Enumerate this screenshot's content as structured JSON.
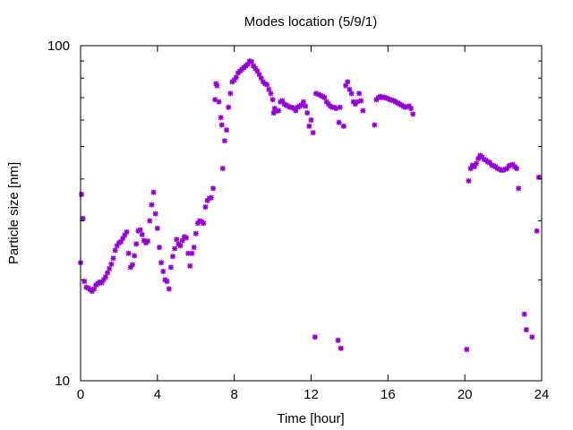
{
  "chart_data": {
    "type": "scatter",
    "title": "Modes location (5/9/1)",
    "xlabel": "Time [hour]",
    "ylabel": "Particle size [nm]",
    "xlim": [
      0,
      24
    ],
    "ylim": [
      10,
      100
    ],
    "y_scale": "log",
    "x_ticks": [
      0,
      4,
      8,
      12,
      16,
      20,
      24
    ],
    "y_ticks": [
      10,
      100
    ],
    "grid": false,
    "legend": "none",
    "marker_color": "#9400d3",
    "marker": "asterisk",
    "points": [
      [
        0.0,
        22.5
      ],
      [
        0.05,
        36.0
      ],
      [
        0.12,
        30.5
      ],
      [
        0.2,
        19.8
      ],
      [
        0.3,
        19.0
      ],
      [
        0.4,
        18.9
      ],
      [
        0.5,
        18.7
      ],
      [
        0.6,
        18.5
      ],
      [
        0.7,
        18.8
      ],
      [
        0.8,
        19.3
      ],
      [
        0.9,
        19.5
      ],
      [
        1.0,
        19.7
      ],
      [
        1.1,
        19.6
      ],
      [
        1.2,
        20.0
      ],
      [
        1.3,
        20.4
      ],
      [
        1.4,
        21.0
      ],
      [
        1.5,
        21.6
      ],
      [
        1.6,
        22.3
      ],
      [
        1.7,
        23.2
      ],
      [
        1.8,
        24.5
      ],
      [
        1.9,
        25.3
      ],
      [
        2.0,
        25.8
      ],
      [
        2.1,
        26.0
      ],
      [
        2.2,
        26.6
      ],
      [
        2.3,
        27.2
      ],
      [
        2.4,
        27.8
      ],
      [
        2.5,
        24.0
      ],
      [
        2.6,
        21.8
      ],
      [
        2.7,
        22.2
      ],
      [
        2.8,
        23.6
      ],
      [
        2.9,
        25.6
      ],
      [
        3.0,
        28.0
      ],
      [
        3.1,
        28.2
      ],
      [
        3.2,
        27.3
      ],
      [
        3.3,
        26.2
      ],
      [
        3.4,
        25.8
      ],
      [
        3.5,
        26.1
      ],
      [
        3.6,
        30.0
      ],
      [
        3.7,
        33.5
      ],
      [
        3.8,
        36.5
      ],
      [
        3.9,
        31.5
      ],
      [
        4.0,
        28.5
      ],
      [
        4.1,
        25.0
      ],
      [
        4.2,
        22.5
      ],
      [
        4.3,
        21.2
      ],
      [
        4.4,
        20.0
      ],
      [
        4.5,
        19.8
      ],
      [
        4.6,
        18.8
      ],
      [
        4.7,
        21.8
      ],
      [
        4.8,
        23.5
      ],
      [
        4.9,
        24.8
      ],
      [
        5.0,
        26.4
      ],
      [
        5.1,
        25.6
      ],
      [
        5.2,
        25.3
      ],
      [
        5.3,
        26.2
      ],
      [
        5.4,
        26.9
      ],
      [
        5.5,
        26.7
      ],
      [
        5.6,
        24.0
      ],
      [
        5.7,
        22.0
      ],
      [
        5.8,
        24.0
      ],
      [
        5.9,
        25.0
      ],
      [
        6.0,
        27.5
      ],
      [
        6.1,
        29.5
      ],
      [
        6.2,
        30.0
      ],
      [
        6.3,
        29.8
      ],
      [
        6.4,
        29.5
      ],
      [
        6.5,
        33.0
      ],
      [
        6.6,
        34.5
      ],
      [
        6.7,
        35.0
      ],
      [
        6.8,
        35.2
      ],
      [
        6.9,
        37.5
      ],
      [
        7.0,
        69.0
      ],
      [
        7.05,
        77.0
      ],
      [
        7.1,
        76.0
      ],
      [
        7.2,
        68.0
      ],
      [
        7.3,
        61.0
      ],
      [
        7.35,
        58.0
      ],
      [
        7.4,
        43.0
      ],
      [
        7.5,
        52.0
      ],
      [
        7.6,
        56.0
      ],
      [
        7.7,
        65.5
      ],
      [
        7.8,
        72.0
      ],
      [
        7.9,
        78.0
      ],
      [
        8.0,
        79.0
      ],
      [
        8.1,
        80.5
      ],
      [
        8.2,
        83.0
      ],
      [
        8.3,
        84.0
      ],
      [
        8.4,
        85.0
      ],
      [
        8.5,
        86.0
      ],
      [
        8.6,
        87.0
      ],
      [
        8.7,
        88.0
      ],
      [
        8.8,
        90.0
      ],
      [
        8.9,
        89.5
      ],
      [
        9.0,
        87.0
      ],
      [
        9.1,
        85.5
      ],
      [
        9.2,
        84.0
      ],
      [
        9.3,
        82.0
      ],
      [
        9.4,
        80.0
      ],
      [
        9.5,
        78.0
      ],
      [
        9.6,
        77.0
      ],
      [
        9.7,
        76.5
      ],
      [
        9.8,
        74.0
      ],
      [
        9.9,
        72.0
      ],
      [
        10.0,
        69.0
      ],
      [
        10.05,
        63.0
      ],
      [
        10.1,
        65.0
      ],
      [
        10.2,
        63.8
      ],
      [
        10.3,
        64.0
      ],
      [
        10.4,
        68.0
      ],
      [
        10.5,
        68.5
      ],
      [
        10.6,
        67.0
      ],
      [
        10.7,
        66.5
      ],
      [
        10.8,
        66.0
      ],
      [
        10.9,
        65.5
      ],
      [
        11.0,
        65.5
      ],
      [
        11.1,
        65.0
      ],
      [
        11.2,
        64.0
      ],
      [
        11.3,
        65.5
      ],
      [
        11.4,
        66.0
      ],
      [
        11.5,
        66.5
      ],
      [
        11.6,
        68.0
      ],
      [
        11.7,
        66.0
      ],
      [
        11.8,
        63.0
      ],
      [
        11.9,
        57.5
      ],
      [
        12.0,
        60.0
      ],
      [
        12.1,
        55.0
      ],
      [
        12.2,
        13.5
      ],
      [
        12.25,
        72.0
      ],
      [
        12.4,
        71.5
      ],
      [
        12.5,
        71.0
      ],
      [
        12.6,
        70.5
      ],
      [
        12.7,
        70.0
      ],
      [
        12.8,
        68.0
      ],
      [
        12.9,
        67.0
      ],
      [
        13.0,
        66.0
      ],
      [
        13.1,
        65.5
      ],
      [
        13.2,
        65.5
      ],
      [
        13.3,
        65.0
      ],
      [
        13.4,
        13.2
      ],
      [
        13.45,
        59.0
      ],
      [
        13.5,
        65.5
      ],
      [
        13.55,
        12.5
      ],
      [
        13.7,
        57.5
      ],
      [
        13.8,
        76.0
      ],
      [
        13.9,
        78.0
      ],
      [
        14.0,
        74.0
      ],
      [
        14.1,
        72.0
      ],
      [
        14.2,
        68.0
      ],
      [
        14.3,
        67.0
      ],
      [
        14.4,
        68.0
      ],
      [
        14.5,
        72.0
      ],
      [
        14.6,
        68.5
      ],
      [
        14.7,
        64.0
      ],
      [
        15.3,
        58.0
      ],
      [
        15.4,
        69.0
      ],
      [
        15.5,
        70.0
      ],
      [
        15.6,
        70.5
      ],
      [
        15.7,
        70.0
      ],
      [
        15.8,
        70.2
      ],
      [
        15.9,
        69.8
      ],
      [
        16.0,
        69.5
      ],
      [
        16.1,
        69.0
      ],
      [
        16.2,
        68.8
      ],
      [
        16.3,
        68.5
      ],
      [
        16.4,
        68.0
      ],
      [
        16.5,
        67.5
      ],
      [
        16.6,
        67.0
      ],
      [
        16.7,
        66.5
      ],
      [
        16.8,
        66.0
      ],
      [
        16.9,
        65.5
      ],
      [
        17.0,
        65.8
      ],
      [
        17.1,
        66.0
      ],
      [
        17.2,
        65.0
      ],
      [
        17.3,
        62.5
      ],
      [
        20.1,
        12.4
      ],
      [
        20.2,
        39.5
      ],
      [
        20.3,
        43.0
      ],
      [
        20.4,
        44.0
      ],
      [
        20.5,
        43.5
      ],
      [
        20.6,
        44.5
      ],
      [
        20.7,
        46.0
      ],
      [
        20.8,
        47.0
      ],
      [
        20.9,
        46.5
      ],
      [
        21.0,
        45.8
      ],
      [
        21.1,
        45.5
      ],
      [
        21.2,
        45.0
      ],
      [
        21.3,
        44.8
      ],
      [
        21.4,
        44.0
      ],
      [
        21.5,
        43.8
      ],
      [
        21.6,
        43.5
      ],
      [
        21.7,
        43.0
      ],
      [
        21.8,
        42.8
      ],
      [
        21.9,
        42.5
      ],
      [
        22.0,
        42.5
      ],
      [
        22.1,
        42.8
      ],
      [
        22.2,
        43.0
      ],
      [
        22.3,
        43.8
      ],
      [
        22.4,
        44.0
      ],
      [
        22.5,
        44.2
      ],
      [
        22.6,
        43.5
      ],
      [
        22.7,
        43.0
      ],
      [
        22.8,
        37.5
      ],
      [
        23.1,
        15.8
      ],
      [
        23.2,
        14.2
      ],
      [
        23.5,
        13.5
      ],
      [
        23.75,
        28.0
      ],
      [
        23.85,
        40.5
      ]
    ]
  }
}
